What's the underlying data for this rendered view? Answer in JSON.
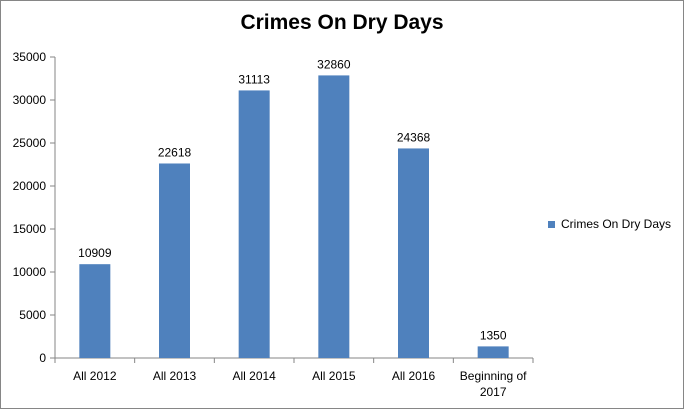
{
  "chart_data": {
    "type": "bar",
    "title": "Crimes On Dry Days",
    "categories": [
      "All 2012",
      "All 2013",
      "All 2014",
      "All 2015",
      "All 2016",
      [
        "Beginning of",
        "2017"
      ]
    ],
    "series": [
      {
        "name": "Crimes On Dry Days",
        "values": [
          10909,
          22618,
          31113,
          32860,
          24368,
          1350
        ]
      }
    ],
    "ylim": [
      0,
      35000
    ],
    "yticks": [
      0,
      5000,
      10000,
      15000,
      20000,
      25000,
      30000,
      35000
    ],
    "grid": false,
    "legend": "right",
    "bar_color": "#4F81BD",
    "axis_color": "#868686"
  }
}
